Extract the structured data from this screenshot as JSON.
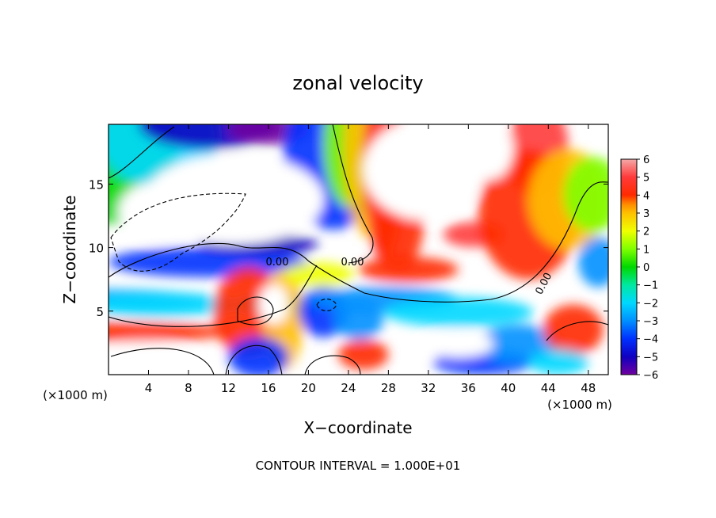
{
  "chart_data": {
    "type": "heatmap",
    "title": "zonal velocity",
    "xlabel": "X−coordinate",
    "ylabel": "Z−coordinate",
    "x_unit": "(×1000 m)",
    "xlim": [
      0,
      50
    ],
    "ylim": [
      0,
      19.7
    ],
    "x_ticks": [
      4,
      8,
      12,
      16,
      20,
      24,
      28,
      32,
      36,
      40,
      44,
      48
    ],
    "x_tick_labels": [
      "4",
      "8",
      "12",
      "16",
      "20",
      "24",
      "28",
      "32",
      "36",
      "40",
      "44",
      "48"
    ],
    "y_ticks": [
      5,
      10,
      15
    ],
    "y_tick_labels": [
      "5",
      "10",
      "15"
    ],
    "colorbar": {
      "min": -6,
      "max": 6,
      "tick_values": [
        6,
        5,
        4,
        3,
        2,
        1,
        0,
        -1,
        -2,
        -3,
        -4,
        -5,
        -6
      ],
      "tick_labels": [
        "6",
        "5",
        "4",
        "3",
        "2",
        "1",
        "0",
        "−1",
        "−2",
        "−3",
        "−4",
        "−5",
        "−6"
      ],
      "stops": [
        {
          "value": 6,
          "color": "#f4a9a9"
        },
        {
          "value": 5,
          "color": "#ff3a3a"
        },
        {
          "value": 4,
          "color": "#ff2a00"
        },
        {
          "value": 3.5,
          "color": "#ff8a00"
        },
        {
          "value": 3,
          "color": "#ffc000"
        },
        {
          "value": 2,
          "color": "#f0ff00"
        },
        {
          "value": 1,
          "color": "#80ff00"
        },
        {
          "value": 0,
          "color": "#00d800"
        },
        {
          "value": -1,
          "color": "#00e8a0"
        },
        {
          "value": -2,
          "color": "#00d8ff"
        },
        {
          "value": -3,
          "color": "#0090ff"
        },
        {
          "value": -4,
          "color": "#0030ff"
        },
        {
          "value": -5,
          "color": "#1000c0"
        },
        {
          "value": -6,
          "color": "#7000a0"
        }
      ]
    },
    "contour_labels": [
      "0.00",
      "0.00",
      "0.00"
    ],
    "annotation": "CONTOUR INTERVAL = 1.000E+01"
  }
}
